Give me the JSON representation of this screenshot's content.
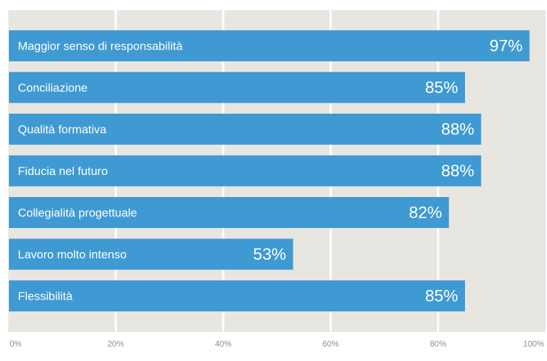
{
  "chart_data": {
    "type": "bar",
    "orientation": "horizontal",
    "categories": [
      "Maggior senso di responsabilità",
      "Conciliazione",
      "Qualità formativa",
      "Fiducia nel futuro",
      "Collegialità progettuale",
      "Lavoro molto intenso",
      "Flessibilità"
    ],
    "values": [
      97,
      85,
      88,
      88,
      82,
      53,
      85
    ],
    "value_labels": [
      "97%",
      "85%",
      "88%",
      "88%",
      "82%",
      "53%",
      "85%"
    ],
    "x_ticks": [
      0,
      20,
      40,
      60,
      80,
      100
    ],
    "x_tick_labels": [
      "0%",
      "20%",
      "40%",
      "60%",
      "80%",
      "100%"
    ],
    "xlim": [
      0,
      100
    ],
    "grid": true,
    "colors": {
      "bar": "#3f9ad3",
      "background": "#e8e6e1",
      "grid": "#ffffff",
      "tick_text": "#8e8e8e"
    }
  }
}
